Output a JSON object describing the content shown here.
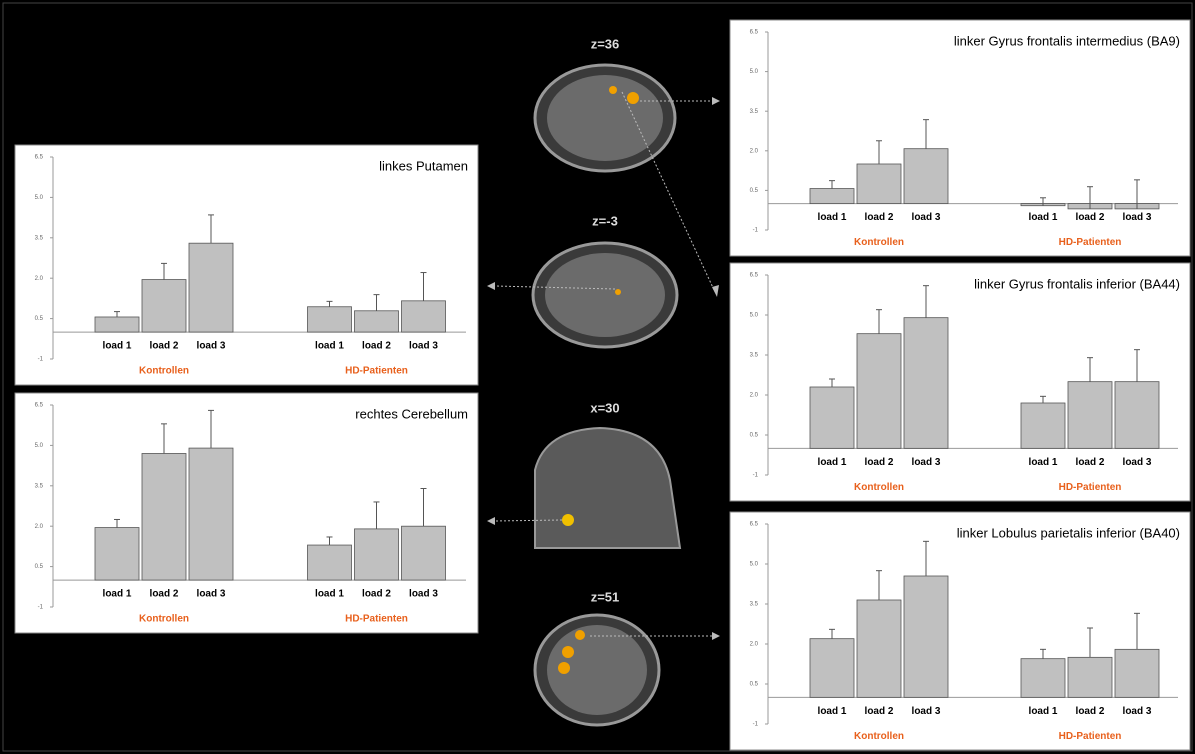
{
  "slices": [
    "z=36",
    "z=-3",
    "x=30",
    "z=51"
  ],
  "chart_data": [
    {
      "type": "bar",
      "title": "linker Gyrus frontalis intermedius (BA9)",
      "categories": [
        "load 1",
        "load 2",
        "load 3"
      ],
      "series": [
        {
          "name": "Kontrollen",
          "color": "#c0c0c0",
          "values": [
            0.57,
            1.5,
            2.08
          ],
          "errors": [
            0.3,
            0.88,
            1.1
          ]
        },
        {
          "name": "HD-Patienten",
          "color": "#c0c0c0",
          "values": [
            -0.08,
            -0.2,
            -0.2
          ],
          "errors": [
            0.3,
            0.84,
            1.1
          ]
        }
      ],
      "ylim": [
        -1,
        6.5
      ],
      "yticks": [
        -1,
        0.5,
        {
          "value": 2,
          "label": "2.0"
        },
        3.5,
        {
          "value": 5,
          "label": "5.0"
        },
        6.5
      ]
    },
    {
      "type": "bar",
      "title": "linkes Putamen",
      "categories": [
        "load 1",
        "load 2",
        "load 3"
      ],
      "series": [
        {
          "name": "Kontrollen",
          "color": "#c0c0c0",
          "values": [
            0.56,
            1.95,
            3.3
          ],
          "errors": [
            0.2,
            0.6,
            1.05
          ]
        },
        {
          "name": "HD-Patienten",
          "color": "#c0c0c0",
          "values": [
            0.94,
            0.79,
            1.16
          ],
          "errors": [
            0.2,
            0.6,
            1.05
          ]
        }
      ],
      "ylim": [
        -1,
        6.5
      ],
      "yticks": [
        -1,
        0.5,
        {
          "value": 2,
          "label": "2.0"
        },
        3.5,
        {
          "value": 5,
          "label": "5.0"
        },
        6.5
      ]
    },
    {
      "type": "bar",
      "title": "linker Gyrus frontalis inferior (BA44)",
      "categories": [
        "load 1",
        "load 2",
        "load 3"
      ],
      "series": [
        {
          "name": "Kontrollen",
          "color": "#c0c0c0",
          "values": [
            2.3,
            4.3,
            4.9
          ],
          "errors": [
            0.3,
            0.9,
            1.2
          ]
        },
        {
          "name": "HD-Patienten",
          "color": "#c0c0c0",
          "values": [
            1.7,
            2.5,
            2.5
          ],
          "errors": [
            0.25,
            0.9,
            1.2
          ]
        }
      ],
      "ylim": [
        -1,
        6.5
      ],
      "yticks": [
        -1,
        0.5,
        {
          "value": 2,
          "label": "2.0"
        },
        3.5,
        {
          "value": 5,
          "label": "5.0"
        },
        6.5
      ]
    },
    {
      "type": "bar",
      "title": "rechtes Cerebellum",
      "categories": [
        "load 1",
        "load 2",
        "load 3"
      ],
      "series": [
        {
          "name": "Kontrollen",
          "color": "#c0c0c0",
          "values": [
            1.95,
            4.7,
            4.9
          ],
          "errors": [
            0.3,
            1.1,
            1.4
          ]
        },
        {
          "name": "HD-Patienten",
          "color": "#c0c0c0",
          "values": [
            1.3,
            1.9,
            2.0
          ],
          "errors": [
            0.3,
            1.0,
            1.4
          ]
        }
      ],
      "ylim": [
        -1,
        6.5
      ],
      "yticks": [
        -1,
        0.5,
        {
          "value": 2,
          "label": "2.0"
        },
        3.5,
        {
          "value": 5,
          "label": "5.0"
        },
        6.5
      ]
    },
    {
      "type": "bar",
      "title": "linker Lobulus parietalis inferior (BA40)",
      "categories": [
        "load 1",
        "load 2",
        "load 3"
      ],
      "series": [
        {
          "name": "Kontrollen",
          "color": "#c0c0c0",
          "values": [
            2.2,
            3.65,
            4.55
          ],
          "errors": [
            0.35,
            1.1,
            1.3
          ]
        },
        {
          "name": "HD-Patienten",
          "color": "#c0c0c0",
          "values": [
            1.45,
            1.5,
            1.8
          ],
          "errors": [
            0.35,
            1.1,
            1.35
          ]
        }
      ],
      "ylim": [
        -1,
        6.5
      ],
      "yticks": [
        -1,
        0.5,
        {
          "value": 2,
          "label": "2.0"
        },
        3.5,
        {
          "value": 5,
          "label": "5.0"
        },
        6.5
      ]
    }
  ]
}
